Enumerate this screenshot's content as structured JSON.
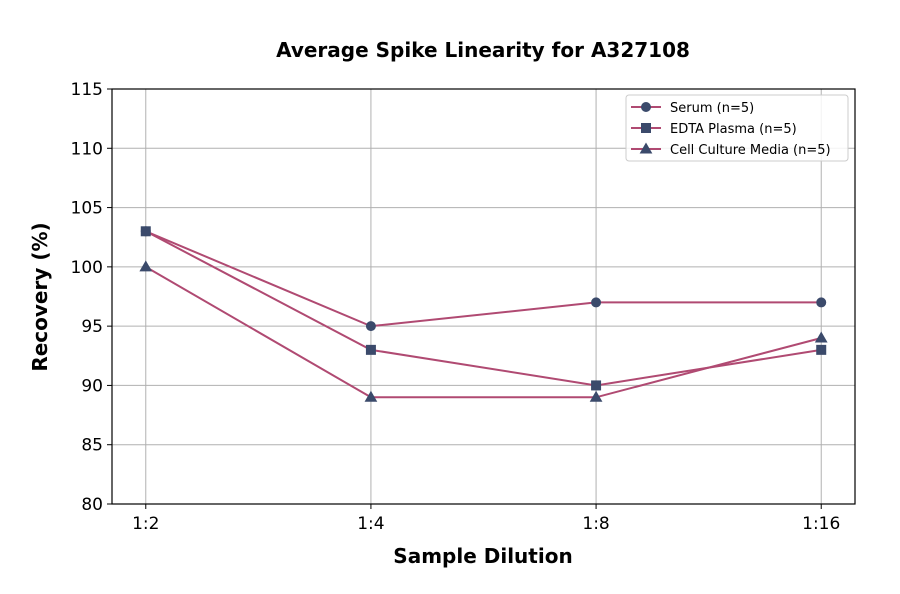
{
  "chart_data": {
    "type": "line",
    "title": "Average Spike Linearity for A327108",
    "xlabel": "Sample Dilution",
    "ylabel": "Recovery (%)",
    "categories": [
      "1:2",
      "1:4",
      "1:8",
      "1:16"
    ],
    "ylim": [
      80,
      115
    ],
    "yticks": [
      80,
      85,
      90,
      95,
      100,
      105,
      110,
      115
    ],
    "grid": true,
    "legend_position": "top-right",
    "line_color": "#b04a72",
    "marker_color": "#3b4a6b",
    "series": [
      {
        "name": "Serum (n=5)",
        "marker": "circle",
        "values": [
          103,
          95,
          97,
          97
        ]
      },
      {
        "name": "EDTA Plasma (n=5)",
        "marker": "square",
        "values": [
          103,
          93,
          90,
          93
        ]
      },
      {
        "name": "Cell Culture Media (n=5)",
        "marker": "triangle",
        "values": [
          100,
          89,
          89,
          94
        ]
      }
    ]
  }
}
